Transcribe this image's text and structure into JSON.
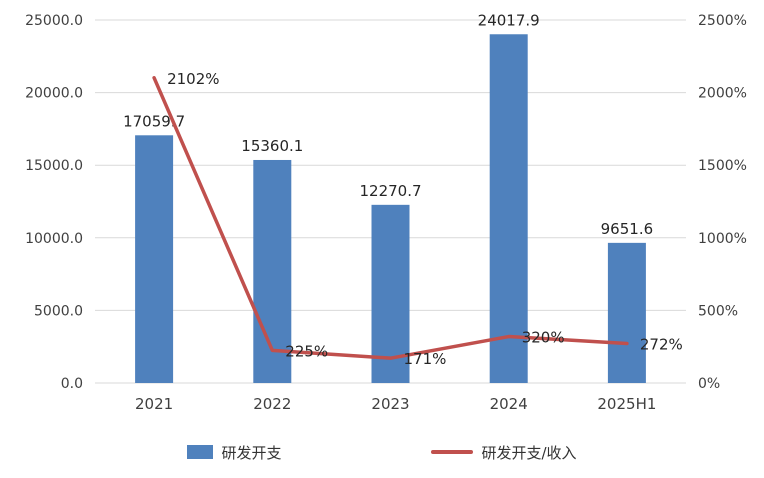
{
  "chart_data": {
    "type": "combo",
    "categories": [
      "2021",
      "2022",
      "2023",
      "2024",
      "2025H1"
    ],
    "series": [
      {
        "name": "研发开支",
        "type": "bar",
        "axis": "left",
        "values": [
          17059.7,
          15360.1,
          12270.7,
          24017.9,
          9651.6
        ],
        "labels": [
          "17059.7",
          "15360.1",
          "12270.7",
          "24017.9",
          "9651.6"
        ],
        "color": "#4F81BD"
      },
      {
        "name": "研发开支/收入",
        "type": "line",
        "axis": "right",
        "values": [
          2102,
          225,
          171,
          320,
          272
        ],
        "labels": [
          "2102%",
          "225%",
          "171%",
          "320%",
          "272%"
        ],
        "color": "#C0504D"
      }
    ],
    "left_axis": {
      "min": 0,
      "max": 25000,
      "ticks": [
        "0.0",
        "5000.0",
        "10000.0",
        "15000.0",
        "20000.0",
        "25000.0"
      ]
    },
    "right_axis": {
      "min": 0,
      "max": 2500,
      "ticks": [
        "0%",
        "500%",
        "1000%",
        "1500%",
        "2000%",
        "2500%"
      ]
    },
    "grid": true,
    "legend_position": "bottom",
    "colors": {
      "gridline": "#D9D9D9",
      "axis_text": "#404040",
      "data_label_text": "#262626",
      "background": "#ffffff"
    }
  }
}
